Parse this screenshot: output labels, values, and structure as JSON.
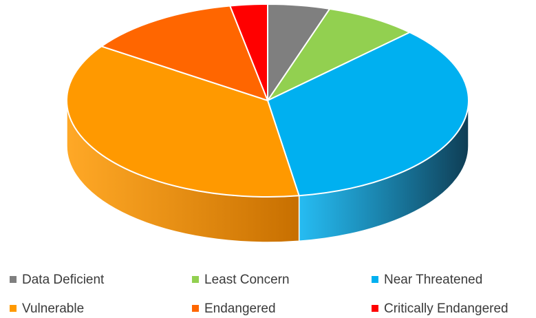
{
  "chart_data": {
    "type": "pie",
    "title": "",
    "style": "3d",
    "legend_position": "bottom",
    "categories": [
      "Data Deficient",
      "Least Concern",
      "Near Threatened",
      "Vulnerable",
      "Endangered",
      "Critically Endangered"
    ],
    "values": [
      5,
      7.5,
      35,
      37,
      12.5,
      3
    ],
    "colors": [
      "#7f7f7f",
      "#92d050",
      "#00b0f0",
      "#ff9900",
      "#ff6600",
      "#ff0000"
    ],
    "side_colors": [
      "#4c4c4c",
      "#5f8a33",
      "#0f3d54",
      "#c76f00",
      "#b24a00",
      "#a80000"
    ]
  }
}
